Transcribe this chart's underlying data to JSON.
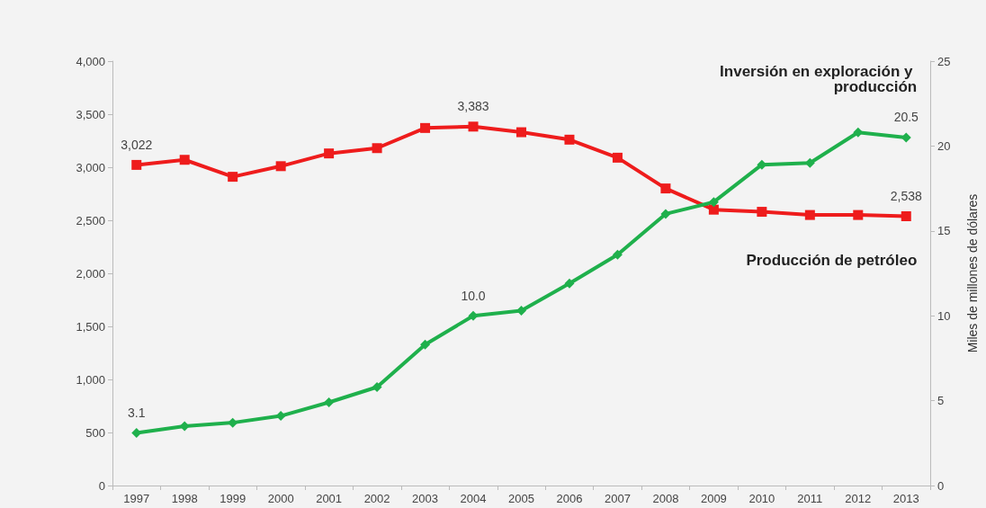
{
  "chart_data": {
    "type": "line",
    "y2label": "Miles de millones de dólares",
    "categories": [
      "1997",
      "1998",
      "1999",
      "2000",
      "2001",
      "2002",
      "2003",
      "2004",
      "2005",
      "2006",
      "2007",
      "2008",
      "2009",
      "2010",
      "2011",
      "2012",
      "2013"
    ],
    "series": [
      {
        "name": "Producción de petróleo",
        "color": "#ee1c1c",
        "marker": "square",
        "values": [
          3022,
          3070,
          2910,
          3010,
          3130,
          3180,
          3370,
          3383,
          3330,
          3260,
          3090,
          2800,
          2600,
          2580,
          2550,
          2550,
          2538
        ],
        "value_labels": [
          "3,022",
          null,
          null,
          null,
          null,
          null,
          null,
          "3,383",
          null,
          null,
          null,
          null,
          null,
          null,
          null,
          null,
          "2,538"
        ]
      },
      {
        "name": "Inversión en exploración y producción",
        "color": "#1fb04c",
        "marker": "diamond",
        "axis": "y2",
        "values": [
          3.1,
          3.5,
          3.7,
          4.1,
          4.9,
          5.8,
          8.3,
          10.0,
          10.3,
          11.9,
          13.6,
          16.0,
          16.7,
          18.9,
          19.0,
          20.8,
          20.5
        ],
        "value_labels": [
          "3.1",
          null,
          null,
          null,
          null,
          null,
          null,
          "10.0",
          null,
          null,
          null,
          null,
          null,
          null,
          null,
          null,
          "20.5"
        ]
      }
    ],
    "ylim": [
      0,
      4000
    ],
    "yticks": [
      0,
      500,
      {
        "value": 1000,
        "label": "1,000"
      },
      {
        "value": 1500,
        "label": "1,500"
      },
      {
        "value": 2000,
        "label": "2,000"
      },
      {
        "value": 2500,
        "label": "2,500"
      },
      {
        "value": 3000,
        "label": "3,000"
      },
      {
        "value": 3500,
        "label": "3,500"
      },
      {
        "value": 4000,
        "label": "4,000"
      }
    ],
    "y2lim": [
      0,
      25
    ],
    "y2ticks": [
      0,
      5,
      10,
      15,
      20,
      25
    ],
    "grid": false,
    "legend": false,
    "line_style": "solid"
  }
}
